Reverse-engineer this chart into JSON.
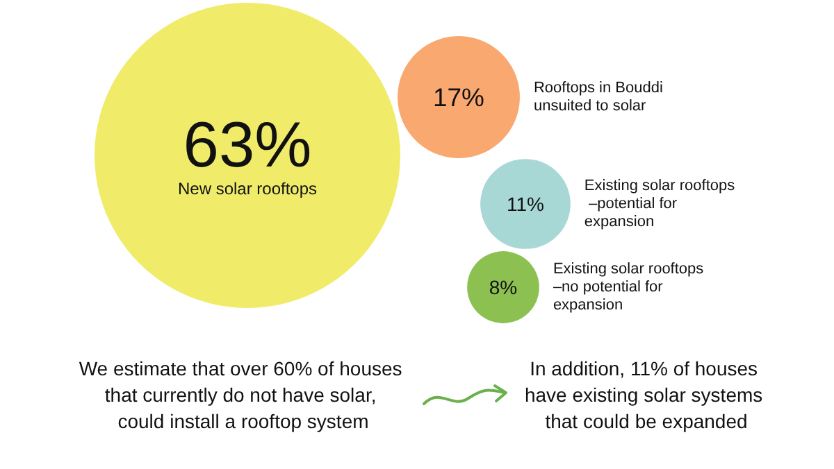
{
  "chart_data": {
    "type": "other",
    "categories": [
      "New solar rooftops",
      "Rooftops in Bouddi unsuited to solar",
      "Existing solar rooftops –potential for expansion",
      "Existing solar rooftops –no potential for expansion"
    ],
    "values": [
      63,
      17,
      11,
      8
    ],
    "value_labels": [
      "63%",
      "17%",
      "11%",
      "8%"
    ],
    "colors": [
      "#f0ec6a",
      "#f9a86f",
      "#a8d8d6",
      "#8cc152"
    ],
    "annotations": [
      "We estimate that over 60% of houses that currently do not have solar, could install a rooftop system",
      "In addition, 11% of houses have existing solar systems that could be expanded"
    ]
  }
}
